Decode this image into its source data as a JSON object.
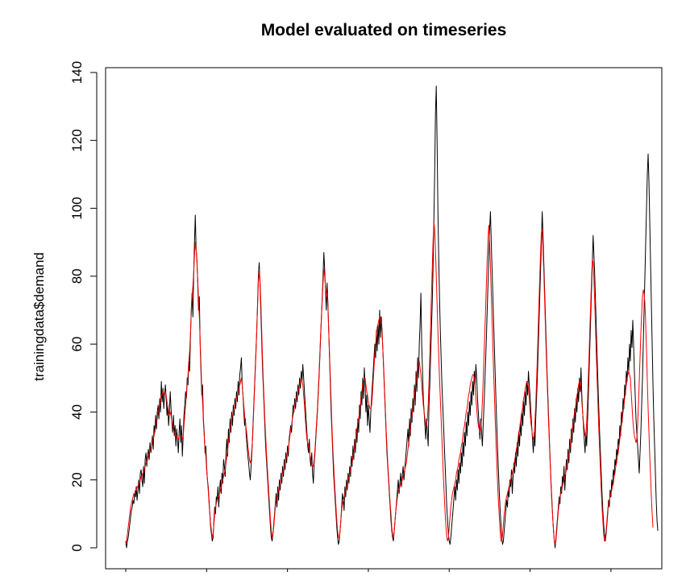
{
  "chart_data": {
    "type": "line",
    "title": "Model evaluated on timeseries",
    "xlabel": "",
    "ylabel": "trainingdata$demand",
    "ylim": [
      0,
      140
    ],
    "yticks": [
      0,
      20,
      40,
      60,
      80,
      100,
      120,
      140
    ],
    "xticks_labeled": false,
    "x_range": [
      0,
      640
    ],
    "grid": false,
    "series": [
      {
        "color": "#000000",
        "values": [
          2,
          0,
          2,
          3,
          5,
          7,
          9,
          11,
          12,
          14,
          13,
          16,
          15,
          18,
          14,
          17,
          20,
          16,
          22,
          23,
          20,
          18,
          24,
          19,
          26,
          28,
          24,
          27,
          29,
          26,
          31,
          28,
          30,
          33,
          29,
          36,
          34,
          39,
          35,
          40,
          42,
          38,
          44,
          40,
          49,
          43,
          47,
          41,
          45,
          48,
          44,
          39,
          42,
          36,
          40,
          46,
          41,
          37,
          34,
          39,
          33,
          36,
          30,
          35,
          32,
          28,
          34,
          38,
          31,
          36,
          27,
          33,
          39,
          42,
          46,
          44,
          50,
          48,
          55,
          52,
          62,
          70,
          75,
          68,
          80,
          90,
          98,
          88,
          85,
          78,
          70,
          74,
          60,
          52,
          45,
          48,
          38,
          34,
          28,
          30,
          24,
          20,
          18,
          14,
          10,
          6,
          4,
          2,
          3,
          8,
          12,
          10,
          15,
          14,
          18,
          12,
          17,
          20,
          16,
          22,
          19,
          26,
          24,
          21,
          28,
          32,
          27,
          35,
          31,
          38,
          34,
          40,
          36,
          42,
          39,
          44,
          41,
          46,
          43,
          49,
          45,
          51,
          53,
          56,
          48,
          45,
          40,
          36,
          38,
          33,
          30,
          27,
          25,
          22,
          20,
          24,
          28,
          34,
          40,
          46,
          52,
          58,
          64,
          72,
          80,
          84,
          78,
          70,
          62,
          54,
          48,
          42,
          36,
          30,
          26,
          22,
          18,
          14,
          10,
          6,
          3,
          2,
          4,
          7,
          10,
          13,
          16,
          12,
          18,
          14,
          20,
          17,
          22,
          19,
          24,
          21,
          26,
          23,
          28,
          25,
          30,
          27,
          32,
          34,
          36,
          34,
          38,
          42,
          40,
          44,
          41,
          46,
          43,
          48,
          45,
          50,
          47,
          52,
          49,
          54,
          50,
          46,
          42,
          38,
          34,
          30,
          28,
          32,
          26,
          24,
          28,
          22,
          19,
          25,
          28,
          32,
          36,
          40,
          45,
          50,
          56,
          62,
          68,
          74,
          80,
          87,
          82,
          76,
          70,
          78,
          72,
          64,
          56,
          48,
          40,
          34,
          28,
          22,
          18,
          14,
          10,
          6,
          3,
          1,
          2,
          5,
          8,
          12,
          16,
          14,
          11,
          18,
          15,
          20,
          17,
          22,
          19,
          24,
          21,
          27,
          24,
          30,
          26,
          32,
          28,
          35,
          31,
          38,
          34,
          42,
          38,
          46,
          42,
          50,
          44,
          53,
          48,
          40,
          45,
          36,
          42,
          38,
          34,
          40,
          44,
          48,
          52,
          56,
          60,
          56,
          64,
          58,
          66,
          60,
          70,
          62,
          68,
          64,
          58,
          52,
          46,
          40,
          34,
          28,
          24,
          20,
          16,
          12,
          8,
          5,
          3,
          2,
          5,
          8,
          11,
          14,
          17,
          20,
          16,
          19,
          22,
          18,
          21,
          24,
          20,
          23,
          26,
          29,
          32,
          35,
          30,
          38,
          33,
          41,
          37,
          44,
          40,
          48,
          42,
          52,
          46,
          56,
          50,
          60,
          66,
          75,
          60,
          52,
          44,
          40,
          36,
          32,
          38,
          34,
          30,
          42,
          48,
          56,
          64,
          72,
          82,
          96,
          110,
          128,
          136,
          120,
          100,
          86,
          74,
          64,
          56,
          48,
          42,
          36,
          30,
          24,
          18,
          12,
          8,
          4,
          2,
          1,
          3,
          6,
          9,
          12,
          15,
          18,
          14,
          20,
          17,
          23,
          19,
          25,
          22,
          28,
          24,
          31,
          27,
          34,
          30,
          37,
          33,
          40,
          36,
          43,
          39,
          46,
          42,
          49,
          45,
          52,
          48,
          54,
          50,
          44,
          40,
          36,
          32,
          38,
          34,
          30,
          36,
          42,
          48,
          55,
          62,
          70,
          78,
          86,
          94,
          99,
          90,
          82,
          74,
          66,
          58,
          50,
          42,
          35,
          28,
          22,
          16,
          11,
          7,
          3,
          1,
          2,
          5,
          8,
          11,
          14,
          12,
          17,
          15,
          20,
          18,
          23,
          16,
          21,
          25,
          22,
          28,
          24,
          31,
          27,
          34,
          30,
          37,
          33,
          40,
          36,
          43,
          39,
          46,
          42,
          49,
          45,
          52,
          48,
          45,
          40,
          36,
          32,
          28,
          34,
          30,
          38,
          44,
          50,
          58,
          66,
          74,
          82,
          90,
          99,
          92,
          84,
          76,
          68,
          60,
          52,
          45,
          38,
          31,
          25,
          19,
          14,
          9,
          5,
          2,
          0,
          3,
          6,
          9,
          12,
          15,
          13,
          18,
          16,
          21,
          19,
          24,
          17,
          22,
          26,
          23,
          29,
          25,
          32,
          28,
          35,
          31,
          38,
          34,
          41,
          37,
          44,
          40,
          47,
          43,
          50,
          46,
          53,
          45,
          40,
          36,
          32,
          28,
          34,
          30,
          37,
          44,
          52,
          60,
          68,
          76,
          84,
          92,
          86,
          80,
          72,
          64,
          56,
          48,
          41,
          34,
          28,
          22,
          16,
          11,
          7,
          4,
          2,
          4,
          7,
          10,
          14,
          12,
          17,
          15,
          20,
          18,
          23,
          21,
          26,
          24,
          29,
          27,
          32,
          30,
          36,
          33,
          40,
          37,
          44,
          41,
          48,
          45,
          52,
          49,
          56,
          52,
          60,
          55,
          64,
          59,
          67,
          60,
          52,
          45,
          38,
          34,
          30,
          26,
          22,
          28,
          34,
          42,
          50,
          60,
          70,
          80,
          90,
          100,
          110,
          116,
          108,
          96,
          84,
          72,
          60,
          48,
          38,
          30,
          22,
          14,
          8,
          5
        ]
      },
      {
        "color": "#ff0000",
        "values": [
          1,
          2,
          4,
          6,
          8,
          10,
          12,
          13,
          14,
          15,
          16,
          16,
          17,
          17,
          18,
          18,
          19,
          19,
          20,
          21,
          21,
          22,
          22,
          23,
          24,
          25,
          25,
          26,
          27,
          28,
          29,
          29,
          30,
          31,
          32,
          33,
          34,
          36,
          37,
          38,
          40,
          41,
          42,
          43,
          45,
          45,
          46,
          45,
          46,
          46,
          45,
          43,
          42,
          40,
          39,
          40,
          39,
          37,
          36,
          35,
          34,
          34,
          33,
          33,
          32,
          32,
          33,
          33,
          33,
          33,
          32,
          33,
          36,
          39,
          42,
          45,
          48,
          51,
          55,
          58,
          63,
          69,
          74,
          77,
          81,
          86,
          90,
          88,
          84,
          79,
          73,
          68,
          61,
          54,
          47,
          43,
          37,
          33,
          29,
          27,
          23,
          20,
          17,
          13,
          10,
          7,
          5,
          3,
          4,
          7,
          10,
          12,
          13,
          14,
          15,
          15,
          16,
          17,
          18,
          19,
          20,
          21,
          22,
          23,
          25,
          27,
          29,
          31,
          33,
          35,
          36,
          38,
          39,
          40,
          41,
          42,
          43,
          44,
          45,
          46,
          47,
          48,
          49,
          50,
          48,
          45,
          42,
          39,
          37,
          35,
          33,
          30,
          28,
          26,
          25,
          26,
          29,
          33,
          39,
          45,
          51,
          57,
          64,
          71,
          78,
          82,
          79,
          73,
          65,
          57,
          50,
          44,
          38,
          33,
          28,
          24,
          20,
          16,
          12,
          8,
          5,
          3,
          4,
          6,
          9,
          12,
          14,
          15,
          16,
          17,
          18,
          19,
          20,
          21,
          22,
          23,
          24,
          25,
          26,
          27,
          28,
          29,
          31,
          33,
          35,
          36,
          38,
          39,
          41,
          42,
          43,
          44,
          45,
          46,
          47,
          48,
          49,
          50,
          49,
          48,
          45,
          42,
          38,
          35,
          32,
          31,
          30,
          29,
          27,
          26,
          25,
          24,
          24,
          26,
          29,
          33,
          37,
          41,
          46,
          51,
          57,
          63,
          68,
          73,
          78,
          82,
          80,
          77,
          74,
          75,
          71,
          64,
          57,
          50,
          43,
          36,
          30,
          25,
          20,
          16,
          12,
          8,
          5,
          3,
          3,
          5,
          8,
          11,
          13,
          14,
          15,
          16,
          17,
          18,
          19,
          20,
          21,
          22,
          23,
          24,
          25,
          27,
          28,
          30,
          31,
          33,
          35,
          37,
          38,
          40,
          42,
          44,
          46,
          48,
          49,
          50,
          50,
          48,
          46,
          45,
          43,
          42,
          41,
          41,
          42,
          45,
          49,
          53,
          57,
          60,
          63,
          65,
          66,
          67,
          68,
          68,
          66,
          63,
          58,
          53,
          47,
          41,
          35,
          30,
          25,
          21,
          17,
          13,
          10,
          6,
          4,
          3,
          5,
          8,
          11,
          13,
          15,
          17,
          17,
          18,
          19,
          19,
          20,
          21,
          22,
          23,
          24,
          25,
          27,
          29,
          31,
          33,
          35,
          37,
          39,
          41,
          43,
          45,
          47,
          49,
          51,
          53,
          54,
          55,
          53,
          51,
          48,
          45,
          42,
          40,
          38,
          36,
          36,
          38,
          42,
          49,
          57,
          65,
          74,
          82,
          90,
          96,
          94,
          88,
          80,
          72,
          64,
          57,
          50,
          44,
          38,
          32,
          26,
          20,
          15,
          10,
          6,
          3,
          2,
          3,
          6,
          9,
          12,
          14,
          16,
          17,
          18,
          19,
          20,
          22,
          23,
          24,
          26,
          27,
          28,
          30,
          31,
          33,
          35,
          36,
          38,
          40,
          41,
          43,
          45,
          46,
          48,
          49,
          50,
          51,
          51,
          50,
          48,
          44,
          41,
          38,
          36,
          35,
          34,
          35,
          38,
          43,
          49,
          56,
          63,
          70,
          78,
          85,
          91,
          95,
          90,
          83,
          75,
          67,
          59,
          51,
          44,
          37,
          30,
          24,
          18,
          13,
          9,
          5,
          2,
          2,
          4,
          7,
          10,
          12,
          14,
          15,
          16,
          17,
          18,
          19,
          20,
          21,
          22,
          23,
          24,
          26,
          27,
          29,
          30,
          32,
          34,
          35,
          37,
          39,
          40,
          42,
          44,
          45,
          47,
          48,
          49,
          49,
          47,
          44,
          40,
          37,
          35,
          33,
          32,
          33,
          37,
          42,
          49,
          56,
          64,
          72,
          80,
          87,
          93,
          94,
          88,
          81,
          73,
          65,
          57,
          50,
          43,
          36,
          30,
          24,
          18,
          13,
          9,
          5,
          2,
          1,
          2,
          5,
          8,
          11,
          13,
          15,
          16,
          17,
          18,
          19,
          20,
          21,
          22,
          23,
          25,
          26,
          28,
          29,
          31,
          33,
          35,
          36,
          38,
          40,
          41,
          43,
          45,
          46,
          48,
          49,
          49,
          47,
          43,
          40,
          37,
          35,
          33,
          33,
          37,
          43,
          50,
          57,
          65,
          72,
          79,
          85,
          84,
          79,
          72,
          64,
          56,
          49,
          42,
          35,
          29,
          23,
          17,
          12,
          8,
          4,
          2,
          3,
          5,
          8,
          11,
          13,
          14,
          15,
          16,
          17,
          18,
          19,
          21,
          22,
          24,
          25,
          27,
          28,
          30,
          32,
          34,
          36,
          38,
          40,
          42,
          44,
          46,
          48,
          50,
          51,
          52,
          51,
          50,
          46,
          42,
          38,
          35,
          33,
          32,
          31,
          32,
          36,
          42,
          49,
          56,
          63,
          69,
          74,
          76,
          75,
          72,
          66,
          58,
          49,
          41,
          34,
          27,
          21,
          15,
          10,
          6
        ]
      }
    ]
  }
}
